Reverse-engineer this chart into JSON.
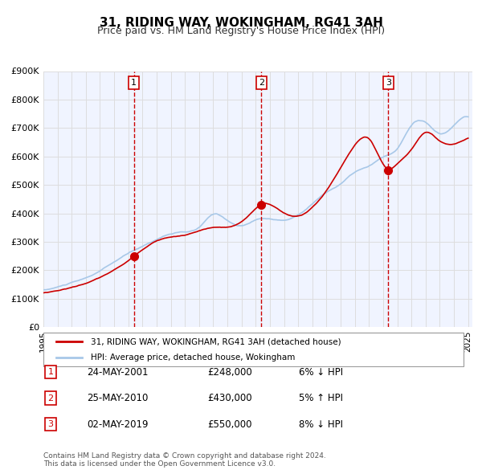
{
  "title": "31, RIDING WAY, WOKINGHAM, RG41 3AH",
  "subtitle": "Price paid vs. HM Land Registry's House Price Index (HPI)",
  "xlabel": "",
  "ylabel": "",
  "ylim": [
    0,
    900000
  ],
  "yticks": [
    0,
    100000,
    200000,
    300000,
    400000,
    500000,
    600000,
    700000,
    800000,
    900000
  ],
  "ytick_labels": [
    "£0",
    "£100K",
    "£200K",
    "£300K",
    "£400K",
    "£500K",
    "£600K",
    "£700K",
    "£800K",
    "£900K"
  ],
  "xlim_start": 1995.0,
  "xlim_end": 2025.3,
  "hpi_color": "#a8c8e8",
  "price_color": "#cc0000",
  "vline_color": "#cc0000",
  "grid_color": "#dddddd",
  "bg_color": "#f0f4ff",
  "sale_points": [
    {
      "year": 2001.39,
      "price": 248000,
      "label": "1"
    },
    {
      "year": 2010.39,
      "price": 430000,
      "label": "2"
    },
    {
      "year": 2019.37,
      "price": 550000,
      "label": "3"
    }
  ],
  "legend_line1": "31, RIDING WAY, WOKINGHAM, RG41 3AH (detached house)",
  "legend_line2": "HPI: Average price, detached house, Wokingham",
  "table_rows": [
    {
      "num": "1",
      "date": "24-MAY-2001",
      "price": "£248,000",
      "pct": "6% ↓ HPI"
    },
    {
      "num": "2",
      "date": "25-MAY-2010",
      "price": "£430,000",
      "pct": "5% ↑ HPI"
    },
    {
      "num": "3",
      "date": "02-MAY-2019",
      "price": "£550,000",
      "pct": "8% ↓ HPI"
    }
  ],
  "footer": "Contains HM Land Registry data © Crown copyright and database right 2024.\nThis data is licensed under the Open Government Licence v3.0."
}
